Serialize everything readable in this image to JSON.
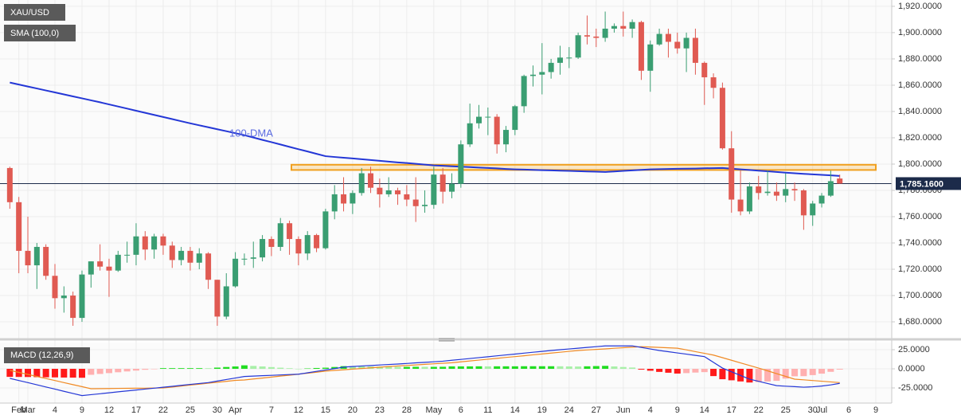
{
  "chart_data": [
    {
      "type": "candlestick",
      "title": "XAU/USD",
      "categories": [
        null,
        "Feb",
        "Mar",
        null,
        null,
        "4",
        null,
        null,
        "9",
        null,
        null,
        "12",
        null,
        null,
        "17",
        null,
        null,
        "22",
        null,
        null,
        "25",
        null,
        null,
        "30",
        null,
        "Apr",
        null,
        null,
        null,
        "7",
        null,
        null,
        "12",
        null,
        null,
        "15",
        null,
        null,
        "20",
        null,
        null,
        "23",
        null,
        null,
        "28",
        null,
        null,
        "May",
        null,
        null,
        "6",
        null,
        null,
        "11",
        null,
        null,
        "14",
        null,
        null,
        "19",
        null,
        null,
        "24",
        null,
        null,
        "27",
        null,
        null,
        "Jun",
        null,
        null,
        "4",
        null,
        null,
        "9",
        null,
        null,
        "14",
        null,
        null,
        "17",
        null,
        null,
        "22",
        null,
        null,
        "25",
        null,
        null,
        "30",
        "Jul",
        null,
        null,
        "6",
        null,
        null,
        "9"
      ],
      "open": [
        1797,
        1771,
        1734,
        1723,
        1737,
        1715,
        1698,
        1700,
        1683,
        1716,
        1726,
        1722,
        1719,
        1731,
        1731,
        1745,
        1735,
        1745,
        1738,
        1727,
        1734,
        1725,
        1732,
        1712,
        1684,
        1707,
        1728,
        1728,
        1729,
        1743,
        1737,
        1755,
        1743,
        1732,
        1746,
        1736,
        1764,
        1777,
        1770,
        1778,
        1793,
        1782,
        1777,
        1780,
        1777,
        1773,
        1768,
        1769,
        1792,
        1779,
        1785,
        1815,
        1831,
        1836,
        1836,
        1815,
        1826,
        1844,
        1867,
        1868,
        1870,
        1877,
        1881,
        1881,
        1898,
        1897,
        1896,
        1903,
        1905,
        1903,
        1908,
        1871,
        1891,
        1899,
        1893,
        1888,
        1896,
        1877,
        1866,
        1858,
        1812,
        1773,
        1764,
        1783,
        1778,
        1779,
        1776,
        1781,
        1780,
        1761,
        1770,
        1776,
        1789,
        null,
        null,
        null,
        null
      ],
      "high": [
        1798,
        1775,
        1760,
        1740,
        1739,
        1724,
        1707,
        1703,
        1719,
        1726,
        1739,
        1728,
        1734,
        1741,
        1755,
        1749,
        1747,
        1747,
        1741,
        1737,
        1737,
        1736,
        1733,
        1712,
        1717,
        1733,
        1732,
        1741,
        1746,
        1745,
        1759,
        1757,
        1745,
        1749,
        1747,
        1766,
        1784,
        1790,
        1780,
        1797,
        1798,
        1789,
        1790,
        1782,
        1784,
        1790,
        1780,
        1798,
        1797,
        1793,
        1818,
        1846,
        1845,
        1843,
        1838,
        1829,
        1845,
        1868,
        1875,
        1892,
        1880,
        1890,
        1889,
        1900,
        1913,
        1903,
        1916,
        1907,
        1916,
        1910,
        1909,
        1894,
        1903,
        1903,
        1900,
        1900,
        1903,
        1878,
        1869,
        1862,
        1825,
        1795,
        1786,
        1791,
        1795,
        1786,
        1793,
        1786,
        1781,
        1772,
        1778,
        1795,
        1792,
        null,
        null,
        null,
        null
      ],
      "low": [
        1766,
        1717,
        1717,
        1705,
        1712,
        1690,
        1687,
        1677,
        1680,
        1706,
        1719,
        1699,
        1718,
        1725,
        1723,
        1727,
        1728,
        1731,
        1721,
        1723,
        1719,
        1720,
        1705,
        1677,
        1682,
        1706,
        1723,
        1721,
        1726,
        1730,
        1734,
        1731,
        1723,
        1727,
        1733,
        1735,
        1758,
        1764,
        1762,
        1776,
        1778,
        1767,
        1775,
        1769,
        1768,
        1756,
        1763,
        1766,
        1770,
        1774,
        1782,
        1813,
        1827,
        1822,
        1808,
        1809,
        1822,
        1839,
        1859,
        1853,
        1865,
        1868,
        1873,
        1880,
        1891,
        1889,
        1893,
        1900,
        1897,
        1896,
        1864,
        1855,
        1890,
        1881,
        1884,
        1870,
        1868,
        1845,
        1850,
        1811,
        1763,
        1761,
        1762,
        1773,
        1776,
        1772,
        1771,
        1772,
        1750,
        1753,
        1767,
        1775,
        1785,
        null,
        null,
        null,
        null
      ],
      "close": [
        1771,
        1734,
        1723,
        1737,
        1715,
        1698,
        1700,
        1683,
        1716,
        1726,
        1722,
        1719,
        1731,
        1731,
        1745,
        1735,
        1745,
        1738,
        1727,
        1734,
        1725,
        1732,
        1712,
        1684,
        1707,
        1728,
        1728,
        1729,
        1743,
        1737,
        1755,
        1743,
        1732,
        1746,
        1736,
        1764,
        1777,
        1770,
        1778,
        1793,
        1782,
        1777,
        1780,
        1777,
        1773,
        1768,
        1769,
        1792,
        1779,
        1785,
        1815,
        1831,
        1836,
        1836,
        1815,
        1826,
        1844,
        1867,
        1868,
        1870,
        1877,
        1881,
        1881,
        1898,
        1897,
        1896,
        1903,
        1905,
        1903,
        1908,
        1871,
        1891,
        1899,
        1893,
        1888,
        1896,
        1877,
        1866,
        1858,
        1812,
        1773,
        1764,
        1783,
        1778,
        1779,
        1776,
        1781,
        1780,
        1761,
        1770,
        1776,
        1787,
        1785.16,
        null,
        null,
        null,
        null
      ],
      "colors": {
        "up": "#3a9e72",
        "down": "#e05a52"
      },
      "series": [
        {
          "name": "SMA (100,0)",
          "color": "#2437d6",
          "values": [
            1862,
            1860.5,
            1859,
            1857.5,
            1856,
            1854.5,
            1853,
            1851.5,
            1850,
            1848.5,
            1847,
            1845.4,
            1843.8,
            1842.2,
            1840.6,
            1839,
            1837.4,
            1835.8,
            1834.2,
            1832.6,
            1831,
            1829.5,
            1828,
            1826.5,
            1825,
            1823.5,
            1822,
            1820.2,
            1818.4,
            1816.7,
            1814.9,
            1813.1,
            1811.3,
            1809.6,
            1807.8,
            1806,
            1805.4,
            1804.8,
            1804.3,
            1803.7,
            1803.1,
            1802.5,
            1801.9,
            1801.3,
            1800.8,
            1800.2,
            1799.6,
            1799,
            1798.7,
            1798.3,
            1798,
            1797.7,
            1797.3,
            1797,
            1796.7,
            1796.3,
            1796,
            1795.8,
            1795.6,
            1795.4,
            1795.2,
            1795,
            1794.8,
            1794.6,
            1794.4,
            1794.2,
            1794,
            1794.4,
            1794.8,
            1795.2,
            1795.6,
            1796,
            1796.1,
            1796.3,
            1796.4,
            1796.5,
            1796.6,
            1796.8,
            1796.9,
            1797,
            1796.5,
            1796,
            1795.5,
            1795,
            1794.5,
            1794,
            1793.5,
            1793,
            1792.6,
            1792.2,
            1791.8,
            1791.4,
            1791,
            null,
            null,
            null,
            null
          ]
        }
      ],
      "annotation": "100-DMA",
      "zone": [
        1795.5,
        1799.5
      ],
      "last_price": {
        "value": 1785.16,
        "label": "1,785.1600"
      },
      "ylim": [
        1667.9,
        1924.8
      ],
      "yticks": [
        {
          "value": 1680,
          "label": "1,680.0000"
        },
        {
          "value": 1700,
          "label": "1,700.0000"
        },
        {
          "value": 1720,
          "label": "1,720.0000"
        },
        {
          "value": 1740,
          "label": "1,740.0000"
        },
        {
          "value": 1760,
          "label": "1,760.0000"
        },
        {
          "value": 1780,
          "label": "1,780.0000"
        },
        {
          "value": 1800,
          "label": "1,800.0000"
        },
        {
          "value": 1820,
          "label": "1,820.0000"
        },
        {
          "value": 1840,
          "label": "1,840.0000"
        },
        {
          "value": 1860,
          "label": "1,860.0000"
        },
        {
          "value": 1880,
          "label": "1,880.0000"
        },
        {
          "value": 1900,
          "label": "1,900.0000"
        },
        {
          "value": 1920,
          "label": "1,920.0000"
        }
      ],
      "grid": true
    },
    {
      "type": "macd",
      "title": "MACD (12,26,9)",
      "macd": {
        "color": "#2437d6",
        "values": [
          -12.5,
          -15.3,
          -18,
          -20.9,
          -23.8,
          -26.5,
          -29.4,
          -32.2,
          -35,
          -33.8,
          -32.6,
          -31.4,
          -30.1,
          -28.9,
          -27.7,
          -26.5,
          -25.3,
          -24.1,
          -22.9,
          -21.6,
          -20.4,
          -19.2,
          -18,
          -16,
          -14,
          -12,
          -10,
          -9.5,
          -9,
          -8.5,
          -8,
          -7.5,
          -7,
          -5.2,
          -3.3,
          -1.5,
          0.3,
          2.2,
          3,
          3.7,
          4.3,
          5,
          5.7,
          6.3,
          7,
          7.8,
          8.5,
          9.2,
          10,
          11.2,
          12.3,
          13.5,
          14.7,
          15.8,
          17,
          18.2,
          19.3,
          20.5,
          21.7,
          22.8,
          24,
          25,
          26,
          27,
          28,
          29,
          30,
          30,
          30,
          30,
          28,
          26,
          24,
          22.4,
          20.8,
          19.2,
          17.6,
          16,
          8.5,
          1,
          -3.8,
          -8.7,
          -13.5,
          -16.3,
          -19.2,
          -22,
          -22.7,
          -23.3,
          -24,
          -23.5,
          -22.5,
          -21,
          -19,
          null,
          null,
          null,
          null
        ]
      },
      "signal": {
        "color": "#f08a24",
        "values": [
          -2,
          -4.7,
          -7.3,
          -10,
          -12.7,
          -15.3,
          -18,
          -20.7,
          -23.3,
          -26,
          -25.9,
          -25.8,
          -25.6,
          -25.5,
          -25.4,
          -25.3,
          -25.1,
          -25,
          -23.8,
          -22.5,
          -21.3,
          -20.1,
          -18.8,
          -17.6,
          -16.4,
          -15.1,
          -14.6,
          -13.3,
          -12.1,
          -10.8,
          -9.5,
          -8.3,
          -7,
          -5.7,
          -4.4,
          -3,
          -2.1,
          -1.3,
          -0.4,
          0.4,
          1.3,
          2.1,
          3,
          3.7,
          4.4,
          5.1,
          5.9,
          6.6,
          7.3,
          8,
          9.1,
          10.3,
          11.4,
          12.6,
          13.7,
          14.9,
          16,
          17.1,
          18.3,
          19.4,
          20.6,
          21.7,
          22.9,
          24,
          24.7,
          25.4,
          26.1,
          26.9,
          27.6,
          28.3,
          29,
          28.5,
          28,
          27.5,
          27,
          24.8,
          22.5,
          20.3,
          18,
          14.6,
          11.2,
          7.8,
          4.4,
          1,
          -2.6,
          -6.3,
          -9.9,
          -13.5,
          -14.4,
          -15.3,
          -16.2,
          -17.1,
          -18,
          null,
          null,
          null,
          null
        ]
      },
      "histogram": {
        "colors": [
          "#22dd22",
          "#a8f0a8",
          "#ff1a1a",
          "#ffb0b0"
        ],
        "values": [
          -10.5,
          -10.6,
          -10.7,
          -10.9,
          -11.1,
          -11.2,
          -11.4,
          -11.5,
          -11.7,
          -7.8,
          -6.7,
          -5.6,
          -4.5,
          -3.4,
          -2.3,
          -1.2,
          -0.2,
          0.9,
          0.9,
          0.9,
          0.9,
          0.9,
          0.8,
          1.6,
          2.4,
          3.1,
          4.6,
          3.8,
          3.1,
          2.3,
          1.5,
          0.8,
          0,
          0.5,
          1.1,
          1.5,
          2.4,
          3.5,
          3.4,
          3.3,
          3,
          2.9,
          2.7,
          2.6,
          2.6,
          2.7,
          2.6,
          2.6,
          2.7,
          3.2,
          3.2,
          3.2,
          3.3,
          3.2,
          3.3,
          3.3,
          3.3,
          3.4,
          3.4,
          3.4,
          3.4,
          3.3,
          3.1,
          3,
          3.3,
          3.6,
          3.9,
          3.1,
          2.4,
          1.7,
          -1,
          -2.5,
          -4,
          -5.1,
          -6.2,
          -5.6,
          -4.9,
          -4.3,
          -9.5,
          -13.6,
          -15,
          -16.5,
          -17.9,
          -17.3,
          -16.6,
          -15.7,
          -12.8,
          -9.8,
          -9.6,
          -8.2,
          -6.3,
          -3.9,
          -1,
          null,
          null,
          null,
          null
        ]
      },
      "ylim": [
        -43.75,
        34.4
      ],
      "yticks": [
        {
          "value": 25,
          "label": "25.0000"
        },
        {
          "value": 0,
          "label": "0.0000"
        },
        {
          "value": -25,
          "label": "-25.0000"
        }
      ]
    }
  ]
}
